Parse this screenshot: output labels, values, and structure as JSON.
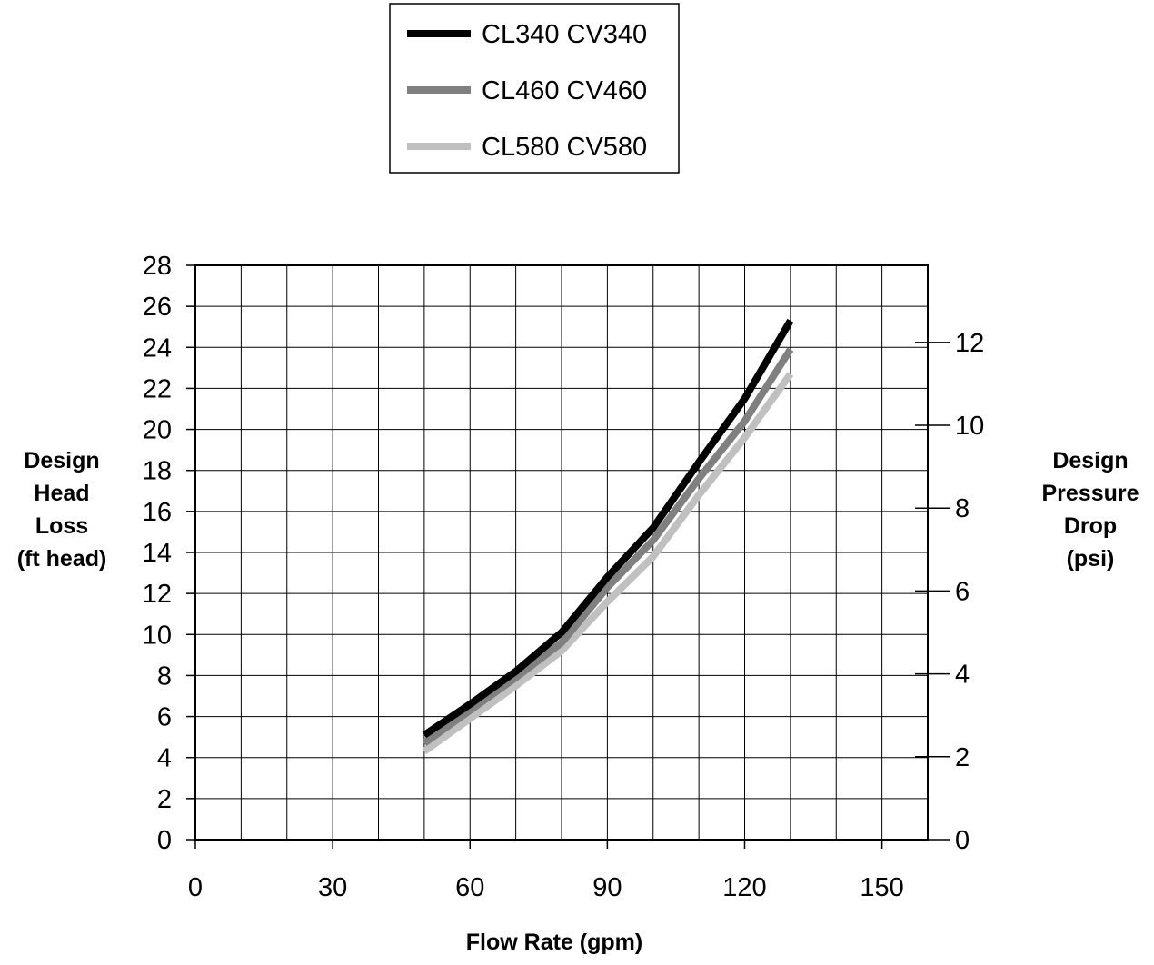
{
  "chart_data": {
    "type": "line",
    "title": "",
    "xlabel": "Flow Rate (gpm)",
    "ylabel_lines": [
      "Design",
      "Head",
      "Loss",
      "(ft head)"
    ],
    "y2label_lines": [
      "Design",
      "Pressure",
      "Drop",
      "(psi)"
    ],
    "xlim": [
      0,
      160
    ],
    "ylim": [
      0,
      28
    ],
    "y2lim": [
      0,
      13.86
    ],
    "x_ticks": [
      0,
      30,
      60,
      90,
      120,
      150
    ],
    "x_tick_labels": [
      "0",
      "30",
      "60",
      "90",
      "120",
      "150"
    ],
    "x_gridlines": [
      0,
      10,
      20,
      30,
      40,
      50,
      60,
      70,
      80,
      90,
      100,
      110,
      120,
      130,
      140,
      150,
      160
    ],
    "y_ticks": [
      0,
      2,
      4,
      6,
      8,
      10,
      12,
      14,
      16,
      18,
      20,
      22,
      24,
      26,
      28
    ],
    "y_tick_labels": [
      "0",
      "2",
      "4",
      "6",
      "8",
      "10",
      "12",
      "14",
      "16",
      "18",
      "20",
      "22",
      "24",
      "26",
      "28"
    ],
    "y2_ticks": [
      0,
      2,
      4,
      6,
      8,
      10,
      12
    ],
    "y2_tick_labels": [
      "0",
      "2",
      "4",
      "6",
      "8",
      "10",
      "12"
    ],
    "grid": true,
    "legend_position": "top-center",
    "series": [
      {
        "name": "CL340 CV340",
        "color": "#000000",
        "x": [
          50,
          60,
          70,
          80,
          90,
          100,
          110,
          120,
          130
        ],
        "y": [
          5.1,
          6.6,
          8.2,
          10.1,
          12.8,
          15.2,
          18.4,
          21.5,
          25.3
        ]
      },
      {
        "name": "CL460 CV460",
        "color": "#808080",
        "x": [
          50,
          60,
          70,
          80,
          90,
          100,
          110,
          120,
          130
        ],
        "y": [
          4.7,
          6.3,
          7.9,
          9.6,
          12.3,
          14.6,
          17.6,
          20.4,
          23.9
        ]
      },
      {
        "name": "CL580 CV580",
        "color": "#c0c0c0",
        "x": [
          50,
          60,
          70,
          80,
          90,
          100,
          110,
          120,
          130
        ],
        "y": [
          4.3,
          5.9,
          7.5,
          9.2,
          11.6,
          13.8,
          16.8,
          19.6,
          22.7
        ]
      }
    ]
  }
}
